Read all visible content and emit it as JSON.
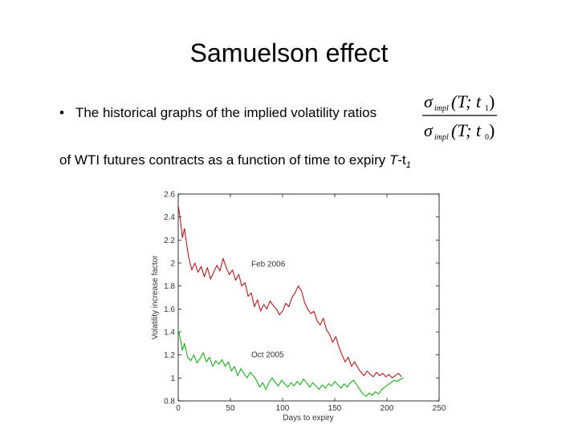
{
  "slide": {
    "title": "Samuelson effect",
    "bullet": "•",
    "bullet_text": "The historical graphs of the implied volatility ratios",
    "line2_text": "of WTI futures contracts as a function of time to expiry ",
    "expiry_T": "T",
    "expiry_minus_t": "-t",
    "expiry_sub": "1"
  },
  "formula": {
    "sigma": "σ",
    "impl": "impl",
    "numerator_args": "(T; t",
    "numerator_sub": "1",
    "denominator_args": "(T; t",
    "denominator_sub": "0",
    "close": ")"
  },
  "chart_data": {
    "type": "line",
    "xlabel": "Days to expiry",
    "ylabel": "Volatility increase factor",
    "xlim": [
      0,
      250
    ],
    "ylim": [
      0.8,
      2.6
    ],
    "xticks": [
      0,
      50,
      100,
      150,
      200,
      250
    ],
    "yticks": [
      0.8,
      1.0,
      1.2,
      1.4,
      1.6,
      1.8,
      2.0,
      2.2,
      2.4,
      2.6
    ],
    "xtick_labels": [
      "0",
      "50",
      "100",
      "150",
      "200",
      "250"
    ],
    "ytick_labels": [
      "0.8",
      "1",
      "1.2",
      "1.4",
      "1.6",
      "1.8",
      "2",
      "2.2",
      "2.4",
      "2.6"
    ],
    "grid": false,
    "series": [
      {
        "name": "Feb 2006",
        "color": "#c00000",
        "x": [
          0,
          2,
          4,
          6,
          8,
          10,
          13,
          16,
          19,
          22,
          25,
          28,
          31,
          34,
          37,
          40,
          43,
          46,
          49,
          52,
          55,
          58,
          61,
          64,
          67,
          70,
          73,
          76,
          79,
          82,
          85,
          88,
          91,
          94,
          97,
          100,
          103,
          106,
          109,
          112,
          115,
          118,
          121,
          124,
          127,
          130,
          133,
          136,
          139,
          142,
          145,
          148,
          151,
          154,
          157,
          160,
          163,
          166,
          169,
          172,
          175,
          178,
          181,
          184,
          187,
          190,
          193,
          196,
          199,
          202,
          205,
          208,
          211,
          214
        ],
        "y": [
          2.5,
          2.38,
          2.22,
          2.3,
          2.17,
          2.05,
          1.94,
          2.0,
          1.92,
          1.97,
          1.88,
          1.96,
          1.86,
          1.92,
          1.98,
          1.93,
          2.04,
          1.96,
          1.9,
          1.94,
          1.85,
          1.9,
          1.8,
          1.83,
          1.71,
          1.74,
          1.62,
          1.68,
          1.58,
          1.64,
          1.6,
          1.67,
          1.63,
          1.6,
          1.55,
          1.58,
          1.65,
          1.62,
          1.7,
          1.74,
          1.8,
          1.76,
          1.66,
          1.6,
          1.56,
          1.58,
          1.5,
          1.46,
          1.52,
          1.42,
          1.38,
          1.31,
          1.36,
          1.27,
          1.2,
          1.14,
          1.18,
          1.1,
          1.14,
          1.09,
          1.05,
          1.02,
          1.06,
          1.03,
          1.01,
          1.05,
          1.02,
          1.04,
          1.01,
          1.03,
          1.0,
          1.02,
          1.04,
          1.01
        ]
      },
      {
        "name": "Oct 2005",
        "color": "#00b000",
        "x": [
          0,
          2,
          4,
          6,
          9,
          12,
          15,
          18,
          21,
          24,
          27,
          30,
          33,
          36,
          39,
          42,
          45,
          48,
          51,
          54,
          57,
          60,
          63,
          66,
          69,
          72,
          75,
          78,
          81,
          84,
          87,
          90,
          93,
          96,
          99,
          102,
          105,
          108,
          111,
          114,
          117,
          120,
          123,
          126,
          129,
          132,
          135,
          138,
          141,
          144,
          147,
          150,
          153,
          156,
          159,
          162,
          165,
          168,
          171,
          174,
          177,
          180,
          183,
          186,
          189,
          192,
          195,
          198,
          201,
          204,
          207,
          210,
          213,
          216
        ],
        "y": [
          1.42,
          1.34,
          1.24,
          1.3,
          1.18,
          1.15,
          1.2,
          1.13,
          1.17,
          1.22,
          1.14,
          1.18,
          1.1,
          1.15,
          1.12,
          1.16,
          1.1,
          1.14,
          1.06,
          1.1,
          1.02,
          1.08,
          1.04,
          1.0,
          1.05,
          1.02,
          0.98,
          0.92,
          0.96,
          0.9,
          0.96,
          1.0,
          0.96,
          0.93,
          0.98,
          0.95,
          0.92,
          0.96,
          0.93,
          0.97,
          0.94,
          0.99,
          0.96,
          0.92,
          0.96,
          0.93,
          0.9,
          0.94,
          0.91,
          0.95,
          0.93,
          0.97,
          0.94,
          0.91,
          0.95,
          0.92,
          0.96,
          0.98,
          0.94,
          0.9,
          0.86,
          0.84,
          0.87,
          0.85,
          0.88,
          0.86,
          0.9,
          0.92,
          0.94,
          0.96,
          0.98,
          0.97,
          0.99,
          1.0
        ]
      }
    ]
  }
}
